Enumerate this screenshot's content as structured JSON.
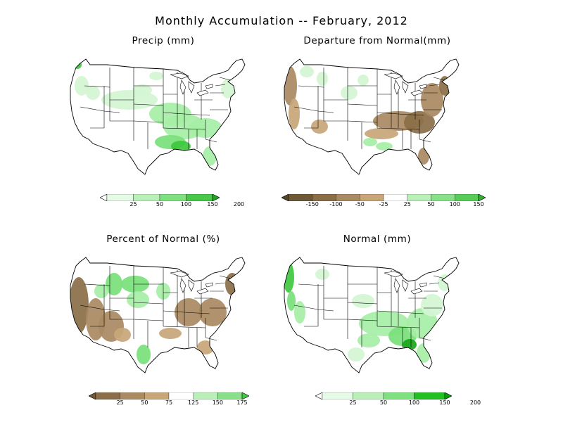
{
  "figure_title": "Monthly Accumulation -- February, 2012",
  "colors": {
    "greens": [
      "#f0fff0",
      "#d2f5d2",
      "#a6eea6",
      "#78e078",
      "#3ec83e",
      "#1aa61a"
    ],
    "browns": [
      "#6e5a38",
      "#8a6e48",
      "#a98a62",
      "#c8a678"
    ],
    "state_line": "#000000"
  },
  "panels": [
    {
      "id": "precip",
      "title": "Precip (mm)",
      "legend": {
        "labels": [
          "25",
          "50",
          "100",
          "150",
          "200"
        ],
        "colors": [
          "#ffffff",
          "#e6fbe6",
          "#b8f0b8",
          "#7fe07f",
          "#48c848",
          "#1fa61f"
        ]
      }
    },
    {
      "id": "departure",
      "title": "Departure from Normal(mm)",
      "legend": {
        "labels": [
          "-150",
          "-100",
          "-50",
          "-25",
          "25",
          "50",
          "100",
          "150"
        ],
        "colors": [
          "#55452a",
          "#6e5a38",
          "#8a6e48",
          "#a98a62",
          "#c8a678",
          "#ffffff",
          "#b8f0b8",
          "#88e088",
          "#58cc58",
          "#30b030"
        ]
      }
    },
    {
      "id": "percent",
      "title": "Percent of Normal (%)",
      "legend": {
        "labels": [
          "25",
          "50",
          "75",
          "125",
          "150",
          "175"
        ],
        "colors": [
          "#6e5a38",
          "#8a6e48",
          "#a98a62",
          "#c8a678",
          "#ffffff",
          "#b8f0b8",
          "#88e088",
          "#48c848"
        ]
      }
    },
    {
      "id": "normal",
      "title": "Normal (mm)",
      "legend": {
        "labels": [
          "25",
          "50",
          "100",
          "150",
          "200"
        ],
        "colors": [
          "#ffffff",
          "#e6fbe6",
          "#b8f0b8",
          "#7fe07f",
          "#20c020",
          "#0ca00c"
        ]
      }
    }
  ]
}
